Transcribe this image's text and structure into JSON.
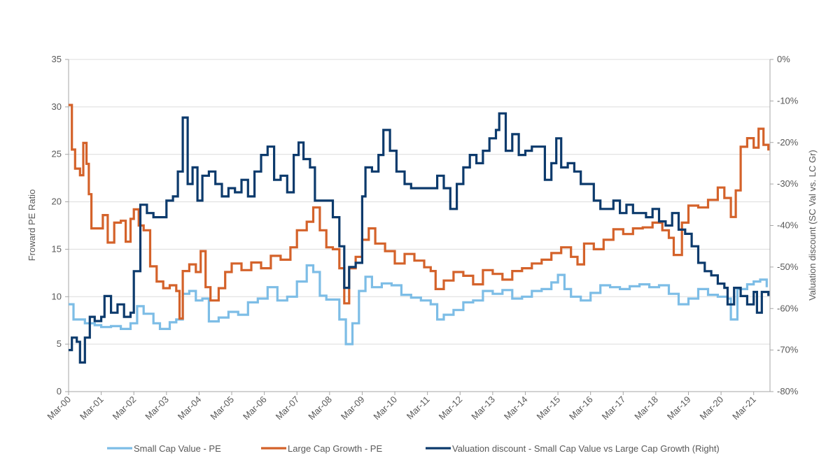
{
  "chart_data": {
    "type": "line",
    "title": "",
    "xlabel": "",
    "ylabel": "Froward PE Ratio",
    "ylabel_right": "Valuation discount (SC Val vs. LC Gr)",
    "ylim": [
      0,
      35
    ],
    "ylim_right": [
      -80,
      0
    ],
    "y_ticks": [
      0,
      5,
      10,
      15,
      20,
      25,
      30,
      35
    ],
    "y_ticks_right": [
      "0%",
      "-10%",
      "-20%",
      "-30%",
      "-40%",
      "-50%",
      "-60%",
      "-70%",
      "-80%"
    ],
    "x_tick_labels": [
      "Mar-00",
      "Mar-01",
      "Mar-02",
      "Mar-03",
      "Mar-04",
      "Mar-05",
      "Mar-06",
      "Mar-07",
      "Mar-08",
      "Mar-09",
      "Mar-10",
      "Mar-11",
      "Mar-12",
      "Mar-13",
      "Mar-14",
      "Mar-15",
      "Mar-16",
      "Mar-17",
      "Mar-18",
      "Mar-19",
      "Mar-20",
      "Mar-21"
    ],
    "grid": "horizontal",
    "legend_position": "bottom",
    "series": [
      {
        "name": "Small Cap Value - PE",
        "axis": "left",
        "color": "#7dbde6",
        "points": [
          [
            0,
            9.2
          ],
          [
            0.15,
            7.6
          ],
          [
            0.5,
            7.2
          ],
          [
            0.8,
            7.0
          ],
          [
            1.0,
            6.8
          ],
          [
            1.3,
            6.9
          ],
          [
            1.6,
            6.6
          ],
          [
            1.9,
            7.2
          ],
          [
            2.1,
            9.0
          ],
          [
            2.3,
            8.2
          ],
          [
            2.6,
            7.2
          ],
          [
            2.8,
            6.6
          ],
          [
            3.1,
            7.3
          ],
          [
            3.3,
            7.6
          ],
          [
            3.5,
            10.3
          ],
          [
            3.7,
            10.6
          ],
          [
            3.9,
            9.6
          ],
          [
            4.1,
            9.8
          ],
          [
            4.3,
            7.4
          ],
          [
            4.6,
            7.8
          ],
          [
            4.9,
            8.4
          ],
          [
            5.2,
            8.1
          ],
          [
            5.5,
            9.4
          ],
          [
            5.8,
            9.8
          ],
          [
            6.1,
            11.0
          ],
          [
            6.4,
            9.6
          ],
          [
            6.7,
            10.0
          ],
          [
            7.0,
            11.6
          ],
          [
            7.3,
            13.3
          ],
          [
            7.5,
            12.6
          ],
          [
            7.7,
            10.1
          ],
          [
            7.9,
            9.7
          ],
          [
            8.1,
            9.7
          ],
          [
            8.3,
            7.6
          ],
          [
            8.5,
            5.0
          ],
          [
            8.7,
            7.2
          ],
          [
            8.9,
            10.6
          ],
          [
            9.1,
            12.1
          ],
          [
            9.3,
            11.0
          ],
          [
            9.6,
            11.4
          ],
          [
            9.9,
            11.2
          ],
          [
            10.2,
            10.2
          ],
          [
            10.5,
            9.9
          ],
          [
            10.8,
            9.6
          ],
          [
            11.1,
            9.2
          ],
          [
            11.3,
            7.6
          ],
          [
            11.5,
            8.1
          ],
          [
            11.8,
            8.6
          ],
          [
            12.1,
            9.4
          ],
          [
            12.4,
            9.6
          ],
          [
            12.7,
            10.6
          ],
          [
            13.0,
            10.3
          ],
          [
            13.3,
            10.7
          ],
          [
            13.6,
            9.8
          ],
          [
            13.9,
            10.0
          ],
          [
            14.2,
            10.6
          ],
          [
            14.5,
            10.8
          ],
          [
            14.8,
            11.5
          ],
          [
            15.0,
            12.3
          ],
          [
            15.2,
            10.8
          ],
          [
            15.4,
            10.0
          ],
          [
            15.7,
            9.6
          ],
          [
            16.0,
            10.4
          ],
          [
            16.3,
            11.2
          ],
          [
            16.6,
            11.0
          ],
          [
            16.9,
            10.8
          ],
          [
            17.2,
            11.1
          ],
          [
            17.5,
            11.3
          ],
          [
            17.8,
            11.0
          ],
          [
            18.1,
            11.2
          ],
          [
            18.4,
            10.3
          ],
          [
            18.7,
            9.2
          ],
          [
            19.0,
            9.8
          ],
          [
            19.3,
            10.8
          ],
          [
            19.6,
            10.2
          ],
          [
            19.9,
            10.0
          ],
          [
            20.2,
            9.8
          ],
          [
            20.3,
            7.6
          ],
          [
            20.5,
            10.8
          ],
          [
            20.8,
            11.3
          ],
          [
            21.0,
            11.6
          ],
          [
            21.2,
            11.8
          ],
          [
            21.4,
            11.0
          ]
        ]
      },
      {
        "name": "Large Cap Growth - PE",
        "axis": "left",
        "color": "#d4622a",
        "points": [
          [
            0,
            30.2
          ],
          [
            0.1,
            25.5
          ],
          [
            0.2,
            23.5
          ],
          [
            0.35,
            22.8
          ],
          [
            0.45,
            26.2
          ],
          [
            0.55,
            24.0
          ],
          [
            0.62,
            20.8
          ],
          [
            0.7,
            17.2
          ],
          [
            0.9,
            17.2
          ],
          [
            1.05,
            18.6
          ],
          [
            1.2,
            15.7
          ],
          [
            1.4,
            17.8
          ],
          [
            1.6,
            18.0
          ],
          [
            1.75,
            15.8
          ],
          [
            1.9,
            18.2
          ],
          [
            2.0,
            19.2
          ],
          [
            2.15,
            17.5
          ],
          [
            2.3,
            17.0
          ],
          [
            2.5,
            13.2
          ],
          [
            2.7,
            11.6
          ],
          [
            2.9,
            10.9
          ],
          [
            3.1,
            11.2
          ],
          [
            3.3,
            10.6
          ],
          [
            3.4,
            7.7
          ],
          [
            3.5,
            12.7
          ],
          [
            3.7,
            13.4
          ],
          [
            3.9,
            12.6
          ],
          [
            4.05,
            14.8
          ],
          [
            4.2,
            11.0
          ],
          [
            4.35,
            9.6
          ],
          [
            4.6,
            10.9
          ],
          [
            4.8,
            12.6
          ],
          [
            5.0,
            13.5
          ],
          [
            5.3,
            12.8
          ],
          [
            5.6,
            13.6
          ],
          [
            5.9,
            13.0
          ],
          [
            6.2,
            14.3
          ],
          [
            6.5,
            13.9
          ],
          [
            6.8,
            15.2
          ],
          [
            7.0,
            17.0
          ],
          [
            7.3,
            17.9
          ],
          [
            7.5,
            19.4
          ],
          [
            7.7,
            17.0
          ],
          [
            7.9,
            15.2
          ],
          [
            8.1,
            15.0
          ],
          [
            8.3,
            13.0
          ],
          [
            8.45,
            9.3
          ],
          [
            8.6,
            13.0
          ],
          [
            8.8,
            14.2
          ],
          [
            9.0,
            16.0
          ],
          [
            9.2,
            17.2
          ],
          [
            9.4,
            15.6
          ],
          [
            9.7,
            14.8
          ],
          [
            10.0,
            13.5
          ],
          [
            10.3,
            14.5
          ],
          [
            10.6,
            13.8
          ],
          [
            10.9,
            13.1
          ],
          [
            11.1,
            12.7
          ],
          [
            11.25,
            10.8
          ],
          [
            11.5,
            11.7
          ],
          [
            11.8,
            12.6
          ],
          [
            12.1,
            12.2
          ],
          [
            12.4,
            11.3
          ],
          [
            12.7,
            12.8
          ],
          [
            13.0,
            12.4
          ],
          [
            13.3,
            11.8
          ],
          [
            13.6,
            12.7
          ],
          [
            13.9,
            13.0
          ],
          [
            14.2,
            13.5
          ],
          [
            14.5,
            13.9
          ],
          [
            14.8,
            14.6
          ],
          [
            15.1,
            15.2
          ],
          [
            15.4,
            14.2
          ],
          [
            15.6,
            13.4
          ],
          [
            15.8,
            15.6
          ],
          [
            16.1,
            15.0
          ],
          [
            16.4,
            16.0
          ],
          [
            16.7,
            17.1
          ],
          [
            17.0,
            16.6
          ],
          [
            17.3,
            17.2
          ],
          [
            17.6,
            17.3
          ],
          [
            17.9,
            17.8
          ],
          [
            18.2,
            17.0
          ],
          [
            18.4,
            16.2
          ],
          [
            18.55,
            14.4
          ],
          [
            18.8,
            17.8
          ],
          [
            19.0,
            19.6
          ],
          [
            19.3,
            19.4
          ],
          [
            19.6,
            20.2
          ],
          [
            19.9,
            21.5
          ],
          [
            20.1,
            20.4
          ],
          [
            20.3,
            18.4
          ],
          [
            20.45,
            21.2
          ],
          [
            20.6,
            25.8
          ],
          [
            20.8,
            26.7
          ],
          [
            21.0,
            25.7
          ],
          [
            21.15,
            27.7
          ],
          [
            21.3,
            26.0
          ],
          [
            21.45,
            25.4
          ]
        ]
      },
      {
        "name": "Valuation discount - Small Cap Value vs Large Cap Growth (Right)",
        "axis": "right",
        "color": "#0c3a6c",
        "points": [
          [
            0,
            -70
          ],
          [
            0.1,
            -67
          ],
          [
            0.25,
            -68
          ],
          [
            0.35,
            -73
          ],
          [
            0.5,
            -67
          ],
          [
            0.65,
            -62
          ],
          [
            0.8,
            -63
          ],
          [
            1.0,
            -62
          ],
          [
            1.1,
            -57
          ],
          [
            1.3,
            -61
          ],
          [
            1.5,
            -59
          ],
          [
            1.7,
            -62
          ],
          [
            1.9,
            -61
          ],
          [
            2.0,
            -51
          ],
          [
            2.2,
            -35
          ],
          [
            2.4,
            -37
          ],
          [
            2.6,
            -38
          ],
          [
            2.8,
            -38
          ],
          [
            3.0,
            -34
          ],
          [
            3.2,
            -33
          ],
          [
            3.35,
            -27
          ],
          [
            3.5,
            -14
          ],
          [
            3.65,
            -30
          ],
          [
            3.8,
            -26
          ],
          [
            3.95,
            -34
          ],
          [
            4.1,
            -28
          ],
          [
            4.3,
            -27
          ],
          [
            4.5,
            -30
          ],
          [
            4.7,
            -33
          ],
          [
            4.9,
            -31
          ],
          [
            5.1,
            -32
          ],
          [
            5.3,
            -29
          ],
          [
            5.5,
            -33
          ],
          [
            5.7,
            -27
          ],
          [
            5.9,
            -23
          ],
          [
            6.1,
            -21
          ],
          [
            6.3,
            -29
          ],
          [
            6.5,
            -28
          ],
          [
            6.7,
            -32
          ],
          [
            6.9,
            -23
          ],
          [
            7.05,
            -20
          ],
          [
            7.2,
            -24
          ],
          [
            7.4,
            -26
          ],
          [
            7.55,
            -34
          ],
          [
            7.75,
            -34
          ],
          [
            7.9,
            -34
          ],
          [
            8.1,
            -38
          ],
          [
            8.3,
            -45
          ],
          [
            8.45,
            -55
          ],
          [
            8.6,
            -50
          ],
          [
            8.8,
            -49
          ],
          [
            9.0,
            -33
          ],
          [
            9.1,
            -26
          ],
          [
            9.3,
            -27
          ],
          [
            9.5,
            -23
          ],
          [
            9.65,
            -17
          ],
          [
            9.85,
            -22
          ],
          [
            10.05,
            -27
          ],
          [
            10.3,
            -30
          ],
          [
            10.5,
            -31
          ],
          [
            10.8,
            -31
          ],
          [
            11.1,
            -31
          ],
          [
            11.3,
            -28
          ],
          [
            11.5,
            -31
          ],
          [
            11.7,
            -36
          ],
          [
            11.9,
            -30
          ],
          [
            12.1,
            -26
          ],
          [
            12.3,
            -23
          ],
          [
            12.5,
            -25
          ],
          [
            12.7,
            -22
          ],
          [
            12.9,
            -19
          ],
          [
            13.1,
            -17
          ],
          [
            13.2,
            -13
          ],
          [
            13.4,
            -22
          ],
          [
            13.6,
            -18
          ],
          [
            13.8,
            -23
          ],
          [
            14.0,
            -22
          ],
          [
            14.2,
            -21
          ],
          [
            14.4,
            -21
          ],
          [
            14.6,
            -29
          ],
          [
            14.8,
            -25
          ],
          [
            14.95,
            -19
          ],
          [
            15.1,
            -26
          ],
          [
            15.3,
            -25
          ],
          [
            15.5,
            -27
          ],
          [
            15.7,
            -30
          ],
          [
            15.9,
            -30
          ],
          [
            16.1,
            -34
          ],
          [
            16.3,
            -36
          ],
          [
            16.5,
            -36
          ],
          [
            16.7,
            -34
          ],
          [
            16.9,
            -37
          ],
          [
            17.1,
            -35
          ],
          [
            17.3,
            -37
          ],
          [
            17.5,
            -37
          ],
          [
            17.7,
            -38
          ],
          [
            17.9,
            -36
          ],
          [
            18.1,
            -39
          ],
          [
            18.3,
            -40
          ],
          [
            18.5,
            -37
          ],
          [
            18.7,
            -41
          ],
          [
            18.9,
            -42
          ],
          [
            19.1,
            -45
          ],
          [
            19.3,
            -49
          ],
          [
            19.5,
            -51
          ],
          [
            19.7,
            -52
          ],
          [
            19.9,
            -54
          ],
          [
            20.1,
            -55
          ],
          [
            20.2,
            -59
          ],
          [
            20.4,
            -55
          ],
          [
            20.6,
            -57
          ],
          [
            20.8,
            -59
          ],
          [
            21.0,
            -56
          ],
          [
            21.1,
            -61
          ],
          [
            21.25,
            -56
          ],
          [
            21.45,
            -57
          ]
        ]
      }
    ]
  }
}
